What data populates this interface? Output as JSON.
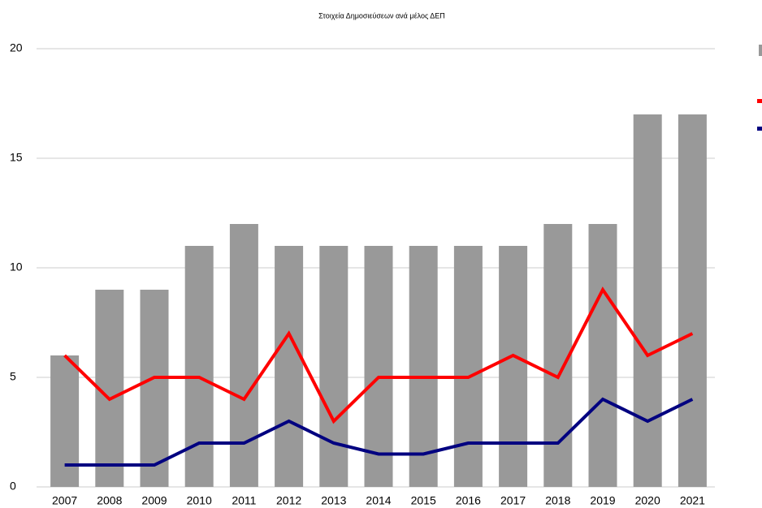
{
  "chart_data": {
    "type": "bar",
    "title": "Στοιχεία Δημοσιεύσεων ανά μέλος ΔΕΠ",
    "categories": [
      "2007",
      "2008",
      "2009",
      "2010",
      "2011",
      "2012",
      "2013",
      "2014",
      "2015",
      "2016",
      "2017",
      "2018",
      "2019",
      "2020",
      "2021"
    ],
    "series": [
      {
        "type": "bar",
        "color": "#999999",
        "values": [
          6,
          9,
          9,
          11,
          12,
          11,
          11,
          11,
          11,
          11,
          11,
          12,
          12,
          17,
          17
        ]
      },
      {
        "type": "line",
        "color": "#ff0000",
        "values": [
          6,
          4,
          5,
          5,
          4,
          7,
          3,
          5,
          5,
          5,
          6,
          5,
          9,
          6,
          7
        ]
      },
      {
        "type": "line",
        "color": "#000080",
        "values": [
          1,
          1,
          1,
          2,
          2,
          3,
          2,
          1.5,
          1.5,
          2,
          2,
          2,
          4,
          3,
          4
        ]
      }
    ],
    "ylim": [
      0,
      20
    ],
    "yticks": [
      0,
      5,
      10,
      15,
      20
    ],
    "grid": true
  }
}
